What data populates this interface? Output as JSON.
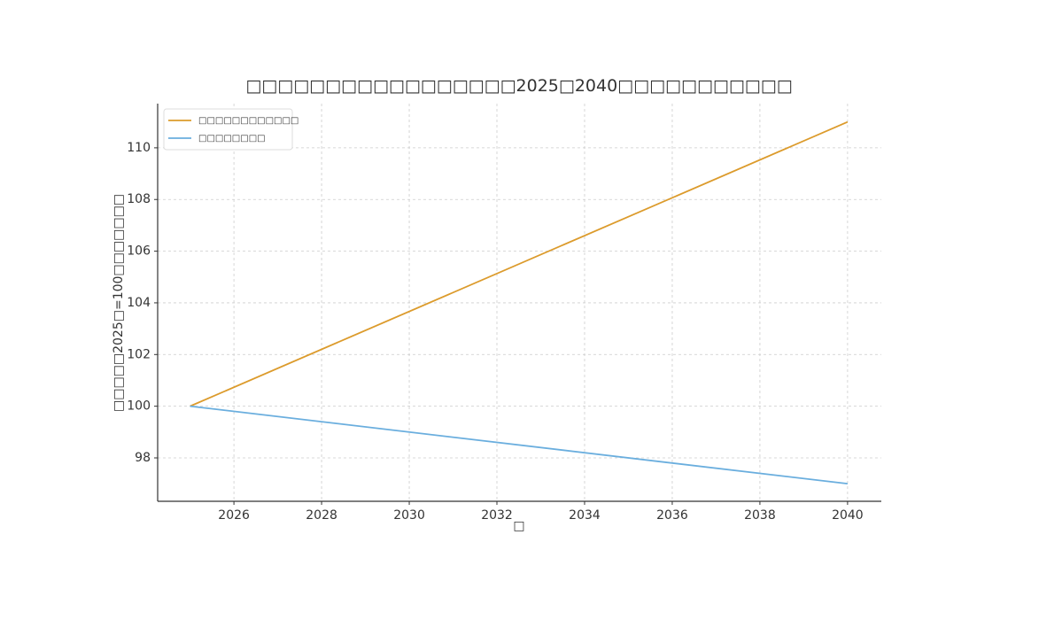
{
  "chart_data": {
    "type": "line",
    "title": "□□□□□□□□□□□□□□□□□2025□2040□□□□□□□□□□□",
    "x_label": "□",
    "y_label": "□□□□□2025□=100□□□□□□□",
    "x": [
      2025,
      2040
    ],
    "series": [
      {
        "name": "□□□□□□□□□□□□",
        "color": "#dc9b2c",
        "values": [
          100,
          111
        ]
      },
      {
        "name": "□□□□□□□□",
        "color": "#6aaede",
        "values": [
          100,
          97
        ]
      }
    ],
    "xlim": [
      2024.26,
      2040.77
    ],
    "ylim": [
      96.32,
      111.71
    ],
    "xticks": [
      2026,
      2028,
      2030,
      2032,
      2034,
      2036,
      2038,
      2040
    ],
    "yticks": [
      98,
      100,
      102,
      104,
      106,
      108,
      110
    ],
    "grid": true,
    "legend": "upper left"
  }
}
